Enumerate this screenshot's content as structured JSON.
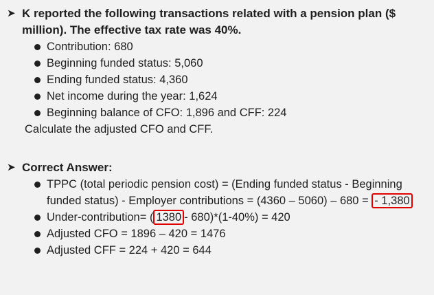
{
  "question": {
    "heading": "K reported the following transactions related with a pension plan ($ million). The effective tax rate was 40%.",
    "items": [
      "Contribution: 680",
      "Beginning funded status: 5,060",
      "Ending funded status: 4,360",
      "Net income during the year: 1,624",
      "Beginning balance of CFO: 1,896 and CFF: 224"
    ],
    "prompt": "Calculate the adjusted CFO and CFF."
  },
  "answer": {
    "heading": "Correct Answer:",
    "tppc_text": "TPPC (total periodic pension cost) = (Ending funded status - Beginning funded status) - Employer contributions = (4360 – 5060) – 680 =",
    "tppc_value": "- 1,380",
    "under_prefix": "Under-contribution= (",
    "under_value": "1380",
    "under_suffix": "- 680)*(1-40%) = 420",
    "cfo": "Adjusted CFO = 1896 – 420 = 1476",
    "cff": "Adjusted CFF = 224 + 420 = 644"
  }
}
